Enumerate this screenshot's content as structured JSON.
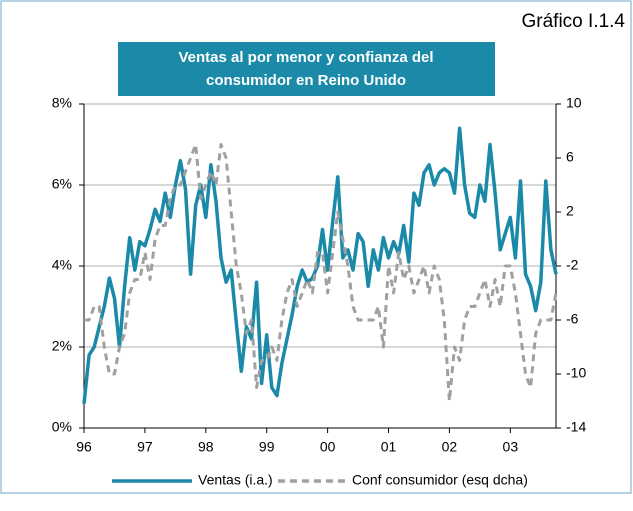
{
  "chart_data": {
    "type": "line",
    "label": "Gráfico I.1.4",
    "title": [
      "Ventas al por menor y confianza del",
      "consumidor en Reino Unido"
    ],
    "categories": [
      "96",
      null,
      null,
      null,
      null,
      null,
      null,
      null,
      null,
      null,
      null,
      null,
      "97",
      null,
      null,
      null,
      null,
      null,
      null,
      null,
      null,
      null,
      null,
      null,
      "98",
      null,
      null,
      null,
      null,
      null,
      null,
      null,
      null,
      null,
      null,
      null,
      "99",
      null,
      null,
      null,
      null,
      null,
      null,
      null,
      null,
      null,
      null,
      null,
      "00",
      null,
      null,
      null,
      null,
      null,
      null,
      null,
      null,
      null,
      null,
      null,
      "01",
      null,
      null,
      null,
      null,
      null,
      null,
      null,
      null,
      null,
      null,
      null,
      "02",
      null,
      null,
      null,
      null,
      null,
      null,
      null,
      null,
      null,
      null,
      null,
      "03",
      null,
      null,
      null,
      null,
      null,
      null,
      null,
      null,
      null
    ],
    "series": [
      {
        "name": "Ventas (i.a.)",
        "color": "#1a8aa8",
        "style": "solid",
        "values": [
          0.6,
          1.8,
          2.0,
          2.5,
          3.0,
          3.7,
          3.2,
          2.0,
          3.5,
          4.7,
          3.9,
          4.6,
          4.5,
          4.9,
          5.4,
          5.1,
          5.8,
          5.2,
          6.0,
          6.6,
          5.9,
          3.8,
          5.5,
          6.0,
          5.2,
          6.5,
          5.6,
          4.2,
          3.6,
          3.9,
          2.6,
          1.4,
          2.5,
          2.2,
          3.6,
          1.1,
          2.3,
          1.0,
          0.8,
          1.6,
          2.2,
          2.8,
          3.5,
          3.9,
          3.6,
          3.7,
          4.0,
          4.9,
          3.9,
          5.1,
          6.2,
          4.2,
          4.4,
          3.9,
          4.8,
          4.6,
          3.5,
          4.4,
          3.9,
          4.7,
          4.2,
          4.6,
          4.3,
          5.0,
          4.1,
          5.8,
          5.5,
          6.3,
          6.5,
          6.0,
          6.3,
          6.4,
          6.3,
          5.8,
          7.4,
          6.0,
          5.3,
          5.2,
          6.0,
          5.6,
          7.0,
          5.8,
          4.4,
          4.8,
          5.2,
          4.2,
          6.1,
          3.8,
          3.5,
          2.9,
          3.6,
          6.1,
          4.4,
          3.8
        ]
      },
      {
        "name": "Conf consumidor (esq dcha)",
        "color": "#a0a0a0",
        "style": "dashed",
        "axis": "y2",
        "values": [
          -6,
          -6,
          -5,
          -5,
          -8,
          -10,
          -10,
          -8,
          -7,
          -4,
          -3,
          -3,
          -1,
          -3,
          0,
          1,
          1,
          3,
          4,
          4,
          5,
          6,
          7,
          3,
          4,
          5,
          4,
          7,
          6,
          2,
          -2,
          -4,
          -7,
          -6,
          -11,
          -9,
          -9,
          -8,
          -9,
          -6,
          -4,
          -3,
          -5,
          -4,
          -3,
          -4,
          -1,
          -1,
          -4,
          -1,
          2,
          0,
          -2,
          -5,
          -6,
          -6,
          -6,
          -6,
          -5,
          -8,
          -2,
          -4,
          -1,
          -3,
          -2,
          -4,
          -3,
          -2,
          -4,
          -2,
          -3,
          -6,
          -12,
          -8,
          -9,
          -6,
          -5,
          -5,
          -4,
          -3,
          -5,
          -3,
          -5,
          -2,
          -2,
          -4,
          -7,
          -10,
          -11,
          -7,
          -6,
          -6,
          -6,
          -4
        ]
      }
    ],
    "ylim": [
      0,
      8
    ],
    "yticks": [
      {
        "value": 0,
        "label": "0%"
      },
      {
        "value": 2,
        "label": "2%"
      },
      {
        "value": 4,
        "label": "4%"
      },
      {
        "value": 6,
        "label": "6%"
      },
      {
        "value": 8,
        "label": "8%"
      }
    ],
    "y2lim": [
      -14,
      10
    ],
    "y2ticks": [
      -14,
      -10,
      -6,
      -2,
      2,
      6,
      10
    ],
    "grid": true
  }
}
